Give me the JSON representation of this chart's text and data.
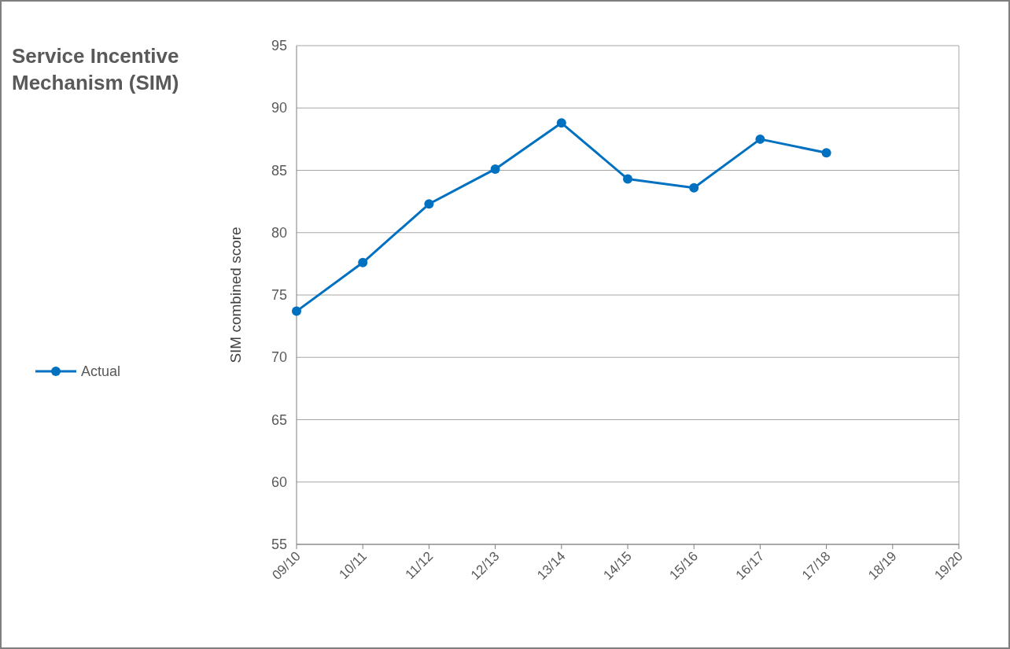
{
  "chart_data": {
    "type": "line",
    "title": "Service Incentive Mechanism (SIM)",
    "ylabel": "SIM combined score",
    "categories": [
      "09/10",
      "10/11",
      "11/12",
      "12/13",
      "13/14",
      "14/15",
      "15/16",
      "16/17",
      "17/18",
      "18/19",
      "19/20"
    ],
    "series": [
      {
        "name": "Actual",
        "color": "#0070c0",
        "values": [
          73.7,
          77.6,
          82.3,
          85.1,
          88.8,
          84.3,
          83.6,
          87.5,
          86.4,
          null,
          null
        ]
      }
    ],
    "ylim": [
      55,
      95
    ],
    "yticks": [
      55,
      60,
      65,
      70,
      75,
      80,
      85,
      90,
      95
    ],
    "grid": "y",
    "legend": "left",
    "marker": "circle",
    "line_style": "solid"
  }
}
